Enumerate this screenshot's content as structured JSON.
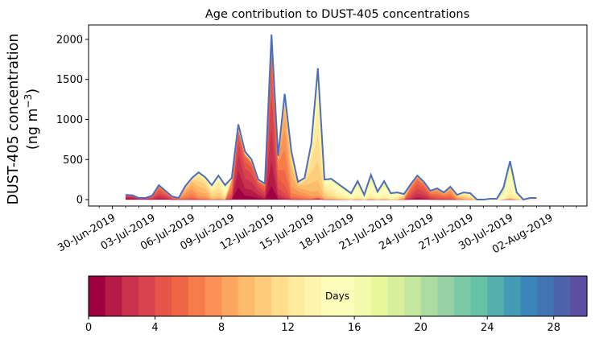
{
  "chart_data": {
    "type": "area",
    "title": "Age contribution to DUST-405 concentrations",
    "ylabel_line1": "DUST-405 concentration",
    "ylabel_line2_prefix": "(ng m",
    "ylabel_line2_exp": "−3",
    "ylabel_line2_suffix": ")",
    "xlabel": "",
    "ylim": [
      -80,
      2180
    ],
    "xlim": [
      -1.8,
      35.8
    ],
    "y_ticks": [
      0,
      500,
      1000,
      1500,
      2000
    ],
    "y_tick_labels": [
      "0",
      "500",
      "1000",
      "1500",
      "2000"
    ],
    "x_ticks": [
      0,
      3,
      6,
      9,
      12,
      15,
      18,
      21,
      24,
      27,
      30,
      33
    ],
    "x_tick_labels": [
      "30-Jun-2019",
      "03-Jul-2019",
      "06-Jul-2019",
      "09-Jul-2019",
      "12-Jul-2019",
      "15-Jul-2019",
      "18-Jul-2019",
      "21-Jul-2019",
      "24-Jul-2019",
      "27-Jul-2019",
      "30-Jul-2019",
      "02-Aug-2019"
    ],
    "x_unit": "days since 30-Jun-2019",
    "total_series": {
      "x": [
        1.0,
        1.5,
        2.0,
        2.5,
        3.0,
        3.5,
        4.0,
        4.5,
        5.0,
        5.5,
        6.0,
        6.5,
        7.0,
        7.5,
        8.0,
        8.5,
        9.0,
        9.5,
        10.0,
        10.5,
        11.0,
        11.5,
        12.0,
        12.5,
        13.0,
        13.5,
        14.0,
        14.5,
        15.0,
        15.5,
        16.0,
        16.5,
        17.0,
        17.5,
        18.0,
        18.5,
        19.0,
        19.5,
        20.0,
        20.5,
        21.0,
        21.5,
        22.0,
        22.5,
        23.0,
        23.5,
        24.0,
        24.5,
        25.0,
        25.5,
        26.0,
        26.5,
        27.0,
        27.5,
        28.0,
        28.5,
        29.0,
        29.5,
        30.0,
        30.5,
        31.0,
        31.5,
        32.0
      ],
      "values": [
        60,
        55,
        20,
        20,
        50,
        180,
        110,
        40,
        20,
        170,
        270,
        340,
        280,
        180,
        300,
        180,
        270,
        940,
        600,
        500,
        250,
        200,
        2060,
        550,
        1320,
        600,
        220,
        270,
        700,
        1640,
        250,
        260,
        200,
        140,
        80,
        230,
        60,
        310,
        100,
        230,
        80,
        90,
        70,
        190,
        300,
        220,
        110,
        140,
        90,
        160,
        60,
        90,
        80,
        0,
        0,
        10,
        10,
        150,
        480,
        90,
        0,
        20,
        20
      ]
    },
    "age_layers": {
      "description": "Stacked contributions by particle age (days); 30 bands from 0 (red) to 30 (purple)",
      "band_count": 30,
      "dominant_age_day": [
        2,
        2,
        2,
        2,
        4,
        4,
        4,
        5,
        6,
        8,
        8,
        10,
        10,
        12,
        12,
        14,
        6,
        2,
        3,
        3,
        3,
        4,
        3,
        5,
        7,
        9,
        8,
        9,
        11,
        12,
        12,
        13,
        14,
        14,
        15,
        15,
        15,
        15,
        15,
        15,
        15,
        14,
        10,
        5,
        4,
        4,
        5,
        6,
        6,
        7,
        9,
        11,
        12,
        14,
        16,
        18,
        22,
        17,
        15,
        14,
        14,
        15,
        15
      ]
    },
    "colorbar": {
      "label": "Days",
      "min": 0,
      "max": 30,
      "ticks": [
        0,
        4,
        8,
        12,
        16,
        20,
        24,
        28
      ],
      "tick_labels": [
        "0",
        "4",
        "8",
        "12",
        "16",
        "20",
        "24",
        "28"
      ],
      "colors": [
        "#9e0142",
        "#b41b47",
        "#c9314c",
        "#d8434e",
        "#e55649",
        "#ee6646",
        "#f67c4a",
        "#f99254",
        "#fca760",
        "#fdbb6c",
        "#fecd7b",
        "#fedd8d",
        "#feeb9d",
        "#fff4ad",
        "#fffbb9",
        "#fbfdb9",
        "#f3faae",
        "#e8f69c",
        "#d8ef9b",
        "#c4e79e",
        "#acdca2",
        "#94d2a4",
        "#7ccaa5",
        "#66c2a5",
        "#55afac",
        "#459bb3",
        "#3a86b9",
        "#4273b3",
        "#4f61aa",
        "#5e4fa2"
      ]
    },
    "outline_color": "#4f6db8",
    "grid": false,
    "legend": "colorbar-bottom"
  }
}
